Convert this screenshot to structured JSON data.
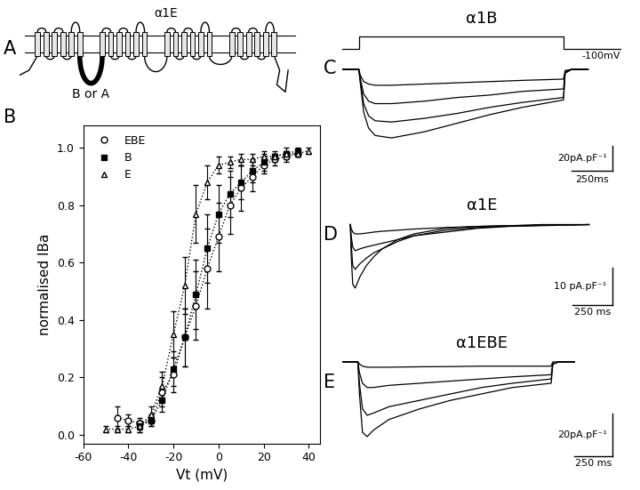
{
  "panel_labels": [
    "A",
    "B",
    "C",
    "D",
    "E"
  ],
  "diagram": {
    "title": "α1E",
    "loop_label": "B or A"
  },
  "chart_data": [
    {
      "type": "scatter",
      "xlabel": "Vt (mV)",
      "ylabel": "normalised IBa",
      "xlim": [
        -60,
        45
      ],
      "ylim": [
        -0.03,
        1.08
      ],
      "xticks": [
        -60,
        -40,
        -20,
        0,
        20,
        40
      ],
      "yticks": [
        {
          "value": 0.0,
          "label": "0.0"
        },
        {
          "value": 0.2,
          "label": "0.2"
        },
        {
          "value": 0.4,
          "label": "0.4"
        },
        {
          "value": 0.6,
          "label": "0.6"
        },
        {
          "value": 0.8,
          "label": "0.8"
        },
        {
          "value": 1.0,
          "label": "1.0"
        }
      ],
      "legend": "upper left",
      "series": [
        {
          "name": "EBE",
          "color": "#000000",
          "marker": "open circle",
          "line_style": "dotted",
          "x": [
            -45,
            -40,
            -35,
            -30,
            -25,
            -20,
            -15,
            -10,
            -5,
            0,
            5,
            10,
            15,
            20,
            25,
            30,
            35
          ],
          "values": [
            0.06,
            0.05,
            0.04,
            0.05,
            0.15,
            0.21,
            0.34,
            0.45,
            0.58,
            0.69,
            0.8,
            0.86,
            0.9,
            0.94,
            0.96,
            0.97,
            0.98
          ],
          "errors": [
            0.04,
            0.02,
            0.02,
            0.02,
            0.05,
            0.06,
            0.1,
            0.12,
            0.14,
            0.12,
            0.1,
            0.08,
            0.05,
            0.03,
            0.02,
            0.02,
            0.01
          ]
        },
        {
          "name": "B",
          "color": "#000000",
          "marker": "filled square",
          "line_style": "dotted",
          "x": [
            -35,
            -30,
            -25,
            -20,
            -15,
            -10,
            -5,
            0,
            5,
            10,
            15,
            20,
            25,
            30,
            35
          ],
          "values": [
            0.03,
            0.05,
            0.12,
            0.23,
            0.34,
            0.49,
            0.65,
            0.77,
            0.84,
            0.88,
            0.92,
            0.95,
            0.97,
            0.98,
            0.99
          ],
          "errors": [
            0.02,
            0.02,
            0.04,
            0.06,
            0.1,
            0.12,
            0.12,
            0.1,
            0.08,
            0.06,
            0.04,
            0.03,
            0.02,
            0.02,
            0.01
          ]
        },
        {
          "name": "E",
          "color": "#000000",
          "marker": "open triangle",
          "line_style": "dotted",
          "x": [
            -50,
            -45,
            -40,
            -35,
            -30,
            -25,
            -20,
            -15,
            -10,
            -5,
            0,
            5,
            10,
            15,
            20,
            25,
            30,
            35,
            40
          ],
          "values": [
            0.02,
            0.02,
            0.02,
            0.03,
            0.07,
            0.17,
            0.35,
            0.52,
            0.77,
            0.88,
            0.94,
            0.95,
            0.96,
            0.96,
            0.97,
            0.97,
            0.98,
            0.98,
            0.99
          ],
          "errors": [
            0.01,
            0.01,
            0.01,
            0.02,
            0.03,
            0.05,
            0.08,
            0.1,
            0.1,
            0.06,
            0.03,
            0.02,
            0.02,
            0.02,
            0.02,
            0.01,
            0.01,
            0.01,
            0.01
          ]
        }
      ]
    },
    {
      "type": "trace",
      "title": "α1B",
      "tick_labels": false,
      "xlim": [
        -100,
        1600
      ],
      "ylim": [
        -85,
        35
      ],
      "x": [
        -100,
        0,
        10,
        30,
        60,
        100,
        200,
        400,
        600,
        800,
        1000,
        1250,
        1260,
        1300,
        1400
      ],
      "series": [
        {
          "color": "#000000",
          "values": [
            0,
            0,
            -5,
            -10,
            -12,
            -13,
            -13,
            -12,
            -11,
            -10,
            -9,
            -8,
            -1,
            0,
            0
          ]
        },
        {
          "color": "#000000",
          "values": [
            0,
            0,
            -8,
            -20,
            -26,
            -28,
            -28,
            -26,
            -23,
            -21,
            -18,
            -16,
            -2,
            0,
            0
          ]
        },
        {
          "color": "#000000",
          "values": [
            0,
            0,
            -10,
            -28,
            -38,
            -42,
            -43,
            -40,
            -36,
            -31,
            -27,
            -23,
            -3,
            0,
            0
          ]
        },
        {
          "color": "#000000",
          "values": [
            0,
            0,
            -12,
            -35,
            -48,
            -54,
            -56,
            -51,
            -44,
            -37,
            -31,
            -25,
            -3,
            0,
            0
          ]
        }
      ],
      "pulse": [
        0,
        1250
      ],
      "annotations": [
        "-100mV"
      ],
      "scale_bar": {
        "y": 20,
        "y_label": "20pA.pF⁻¹",
        "x": 250,
        "x_label": "250ms"
      }
    },
    {
      "type": "trace",
      "title": "α1E",
      "tick_labels": false,
      "xlim": [
        -50,
        1700
      ],
      "ylim": [
        -22,
        3
      ],
      "x": [
        0,
        5,
        15,
        30,
        60,
        100,
        150,
        200,
        300,
        400,
        600,
        800,
        1000,
        1200,
        1500
      ],
      "series": [
        {
          "color": "#000000",
          "values": [
            0,
            -1,
            -2,
            -2.5,
            -2.5,
            -2.3,
            -2,
            -1.8,
            -1.5,
            -1.2,
            -0.8,
            -0.5,
            -0.3,
            -0.2,
            0
          ]
        },
        {
          "color": "#000000",
          "values": [
            0,
            -3,
            -6,
            -7,
            -6.5,
            -6,
            -5.5,
            -5,
            -4,
            -3,
            -2,
            -1,
            -0.5,
            -0.3,
            0
          ]
        },
        {
          "color": "#000000",
          "values": [
            0,
            -5,
            -11,
            -12,
            -10.5,
            -9,
            -7.5,
            -6.5,
            -4.5,
            -3,
            -1.5,
            -0.8,
            -0.4,
            -0.2,
            0
          ]
        },
        {
          "color": "#000000",
          "values": [
            0,
            -8,
            -16,
            -17,
            -14,
            -11,
            -8.5,
            -6.5,
            -4,
            -2.5,
            -1,
            -0.5,
            -0.3,
            0,
            0
          ]
        }
      ],
      "scale_bar": {
        "y": 10,
        "y_label": "10 pA.pF⁻¹",
        "x": 250,
        "x_label": "250 ms"
      }
    },
    {
      "type": "trace",
      "title": "α1EBE",
      "tick_labels": false,
      "xlim": [
        -100,
        1700
      ],
      "ylim": [
        -45,
        5
      ],
      "x": [
        -100,
        0,
        10,
        30,
        60,
        100,
        200,
        400,
        600,
        800,
        1000,
        1250,
        1260,
        1300,
        1400
      ],
      "series": [
        {
          "color": "#000000",
          "values": [
            0,
            0,
            -1,
            -2,
            -2.5,
            -2.5,
            -2.5,
            -2.3,
            -2.2,
            -2,
            -2,
            -2,
            0,
            0,
            0
          ]
        },
        {
          "color": "#000000",
          "values": [
            0,
            0,
            -5,
            -10,
            -12,
            -12,
            -11,
            -10,
            -9,
            -8,
            -7,
            -6,
            -1,
            0,
            0
          ]
        },
        {
          "color": "#000000",
          "values": [
            0,
            0,
            -10,
            -22,
            -25,
            -24,
            -21,
            -18,
            -15,
            -12,
            -10,
            -8,
            -1,
            0,
            0
          ]
        },
        {
          "color": "#000000",
          "values": [
            0,
            0,
            -15,
            -33,
            -35,
            -32,
            -27,
            -22,
            -18,
            -15,
            -12,
            -10,
            -1,
            0,
            0
          ]
        }
      ],
      "scale_bar": {
        "y": 20,
        "y_label": "20pA.pF⁻¹",
        "x": 250,
        "x_label": "250 ms"
      }
    }
  ]
}
